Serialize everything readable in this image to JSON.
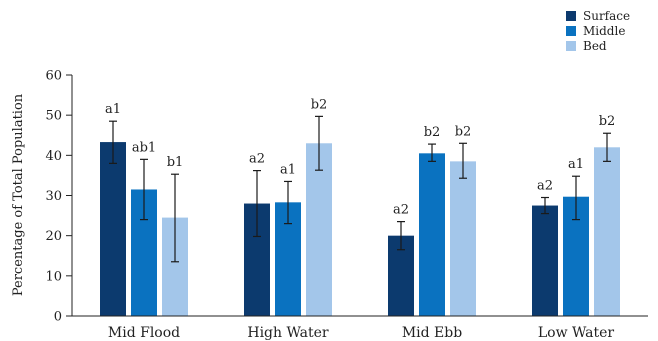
{
  "chart_data": {
    "type": "bar",
    "title": "",
    "xlabel": "",
    "ylabel": "Percentage of Total Population",
    "ylim": [
      0,
      60
    ],
    "yticks": [
      0,
      10,
      20,
      30,
      40,
      50,
      60
    ],
    "grid": false,
    "legend_position": "top-right",
    "categories": [
      "Mid Flood",
      "High Water",
      "Mid Ebb",
      "Low Water"
    ],
    "series": [
      {
        "name": "Surface",
        "color": "#0c3a6e",
        "values": [
          43.3,
          28.0,
          20.0,
          27.5
        ],
        "error": [
          [
            38.0,
            48.5
          ],
          [
            19.8,
            36.2
          ],
          [
            16.5,
            23.5
          ],
          [
            25.5,
            29.5
          ]
        ],
        "labels": [
          "a1",
          "a2",
          "a2",
          "a2"
        ]
      },
      {
        "name": "Middle",
        "color": "#0a72c0",
        "values": [
          31.5,
          28.3,
          40.5,
          29.7
        ],
        "error": [
          [
            24.0,
            39.0
          ],
          [
            23.0,
            33.5
          ],
          [
            38.5,
            42.8
          ],
          [
            24.0,
            34.8
          ]
        ],
        "labels": [
          "ab1",
          "a1",
          "b2",
          "a1"
        ]
      },
      {
        "name": "Bed",
        "color": "#a3c6ea",
        "values": [
          24.5,
          43.0,
          38.5,
          42.0
        ],
        "error": [
          [
            13.5,
            35.3
          ],
          [
            36.3,
            49.7
          ],
          [
            34.3,
            43.0
          ],
          [
            38.5,
            45.5
          ]
        ],
        "labels": [
          "b1",
          "b2",
          "b2",
          "b2"
        ]
      }
    ]
  }
}
